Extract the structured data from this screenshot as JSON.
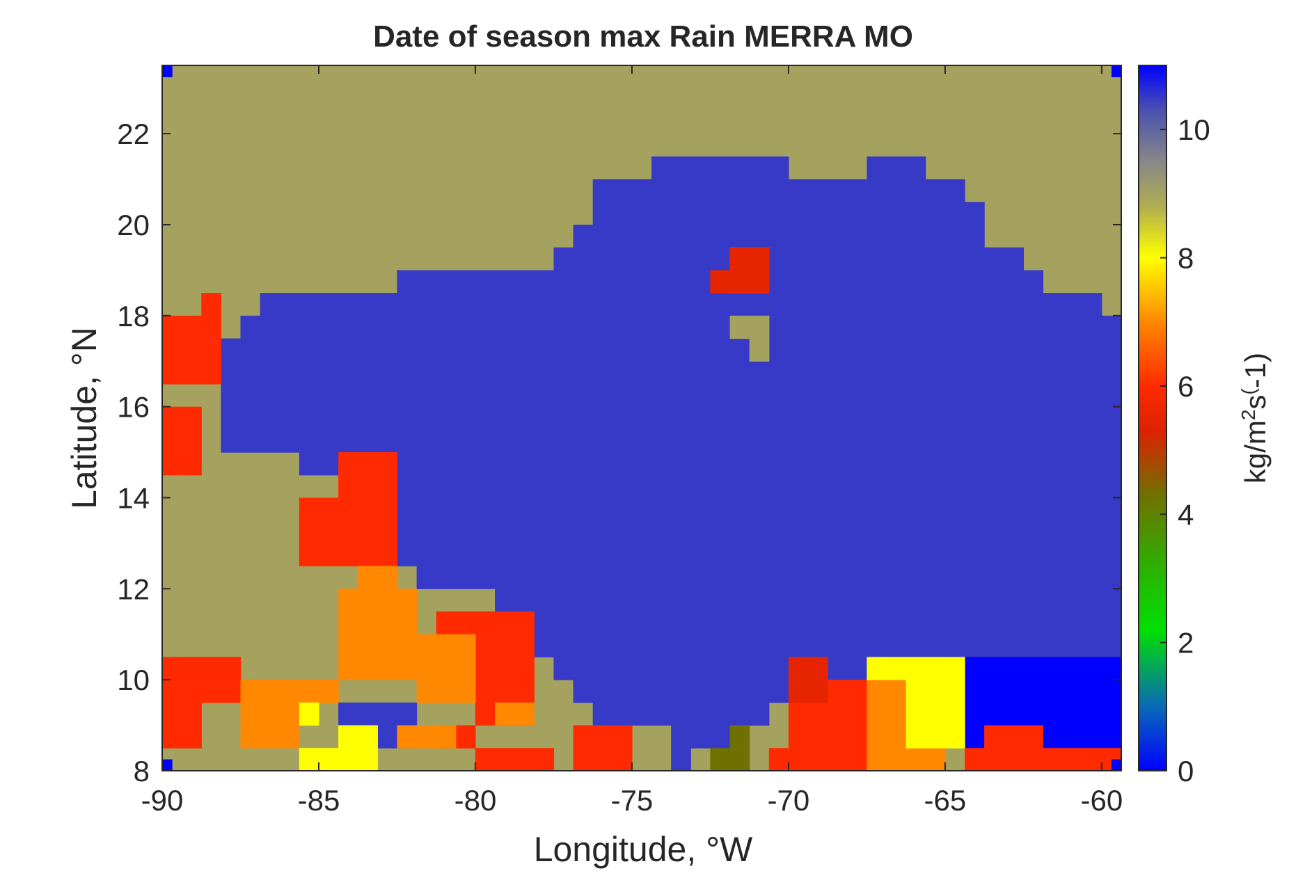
{
  "chart_data": {
    "type": "heatmap",
    "title": "Date of season max Rain MERRA MO",
    "xlabel": "Longitude, °W",
    "ylabel": "Latitude, °N",
    "xlim": [
      -90,
      -59.375
    ],
    "ylim": [
      8,
      23.5
    ],
    "grid_resolution": {
      "dlon": 0.625,
      "dlat": 0.5
    },
    "x_ticks": [
      "-90",
      "-85",
      "-80",
      "-75",
      "-70",
      "-65",
      "-60"
    ],
    "x_tick_values": [
      -90,
      -85,
      -80,
      -75,
      -70,
      -65,
      -60
    ],
    "y_ticks": [
      "8",
      "10",
      "12",
      "14",
      "16",
      "18",
      "20",
      "22"
    ],
    "y_tick_values": [
      8,
      10,
      12,
      14,
      16,
      18,
      20,
      22
    ],
    "colorbar": {
      "label": "kg/m^2s^(-1)",
      "label_parts": [
        "kg/m",
        "2",
        "s",
        "(",
        "-1)"
      ],
      "range": [
        0,
        11
      ],
      "ticks": [
        "0",
        "2",
        "4",
        "6",
        "8",
        "10"
      ],
      "tick_values": [
        0,
        2,
        4,
        6,
        8,
        10
      ],
      "colormap": [
        {
          "v": 0.0,
          "c": "#0000ff"
        },
        {
          "v": 1.0,
          "c": "#0a6ab8"
        },
        {
          "v": 2.2,
          "c": "#00e000"
        },
        {
          "v": 3.3,
          "c": "#33aa00"
        },
        {
          "v": 4.3,
          "c": "#707000"
        },
        {
          "v": 5.3,
          "c": "#dd2200"
        },
        {
          "v": 6.0,
          "c": "#ff2a00"
        },
        {
          "v": 7.0,
          "c": "#ff8800"
        },
        {
          "v": 8.0,
          "c": "#ffff00"
        },
        {
          "v": 8.8,
          "c": "#b0ad50"
        },
        {
          "v": 9.5,
          "c": "#888888"
        },
        {
          "v": 10.3,
          "c": "#4b51b0"
        },
        {
          "v": 11.0,
          "c": "#0000ff"
        }
      ]
    },
    "background_value": 9,
    "regions": [
      {
        "value": 10.5,
        "cells": [
          [
            -74.375,
            20.5,
            -70.0,
            21.5
          ],
          [
            -70.0,
            20.0,
            -67.5,
            21.0
          ],
          [
            -67.5,
            20.5,
            -65.625,
            21.5
          ],
          [
            -65.625,
            20.5,
            -64.375,
            21.0
          ],
          [
            -76.25,
            20.5,
            -74.375,
            21.0
          ],
          [
            -76.25,
            20.0,
            -63.75,
            20.5
          ],
          [
            -76.875,
            19.5,
            -63.75,
            20.0
          ],
          [
            -77.5,
            19.0,
            -62.5,
            19.5
          ],
          [
            -82.5,
            18.5,
            -61.875,
            19.0
          ],
          [
            -86.875,
            18.0,
            -60.0,
            18.5
          ],
          [
            -87.5,
            17.5,
            -59.375,
            18.0
          ],
          [
            -88.125,
            15.0,
            -59.375,
            17.5
          ],
          [
            -85.625,
            14.5,
            -59.375,
            15.0
          ],
          [
            -83.125,
            12.5,
            -59.375,
            14.5
          ],
          [
            -81.875,
            12.0,
            -59.375,
            12.5
          ],
          [
            -79.375,
            11.0,
            -59.375,
            12.0
          ],
          [
            -78.125,
            10.5,
            -59.375,
            11.0
          ],
          [
            -77.5,
            10.0,
            -64.375,
            10.5
          ],
          [
            -76.875,
            9.5,
            -70.0,
            10.0
          ],
          [
            -76.25,
            9.0,
            -70.625,
            9.5
          ],
          [
            -73.75,
            8.5,
            -71.875,
            9.0
          ],
          [
            -73.75,
            8.0,
            -73.125,
            8.5
          ],
          [
            -84.375,
            9.0,
            -81.875,
            9.5
          ],
          [
            -83.75,
            8.5,
            -81.875,
            9.0
          ]
        ]
      },
      {
        "value": 11.0,
        "cells": [
          [
            -64.375,
            8.5,
            -59.375,
            10.5
          ],
          [
            -65.0,
            9.5,
            -64.375,
            10.5
          ],
          [
            -60.0,
            8.0,
            -59.375,
            8.5
          ]
        ]
      },
      {
        "value": 9.0,
        "cells": [
          [
            -71.875,
            18.5,
            -70.625,
            19.5
          ],
          [
            -71.875,
            17.5,
            -70.625,
            18.0
          ],
          [
            -71.25,
            17.0,
            -70.625,
            17.5
          ],
          [
            -65.0,
            8.5,
            -64.375,
            9.0
          ]
        ]
      },
      {
        "value": 6.0,
        "cells": [
          [
            -90.0,
            16.5,
            -88.125,
            18.0
          ],
          [
            -88.75,
            18.0,
            -88.125,
            18.5
          ],
          [
            -90.0,
            14.5,
            -88.75,
            16.0
          ],
          [
            -85.625,
            12.5,
            -82.5,
            14.0
          ],
          [
            -84.375,
            14.0,
            -82.5,
            15.0
          ],
          [
            -90.0,
            9.5,
            -87.5,
            10.5
          ],
          [
            -87.5,
            9.0,
            -86.875,
            10.0
          ],
          [
            -90.0,
            8.5,
            -88.75,
            9.5
          ],
          [
            -81.25,
            10.0,
            -78.125,
            11.5
          ],
          [
            -80.0,
            9.0,
            -78.125,
            10.0
          ],
          [
            -81.25,
            8.5,
            -80.0,
            9.0
          ],
          [
            -80.0,
            8.0,
            -77.5,
            8.5
          ],
          [
            -76.875,
            8.0,
            -75.0,
            9.0
          ],
          [
            -72.5,
            8.0,
            -72.5,
            8.5
          ],
          [
            -71.25,
            18.5,
            -70.625,
            19.5
          ],
          [
            -68.75,
            8.0,
            -67.5,
            10.0
          ],
          [
            -70.0,
            8.0,
            -68.75,
            9.5
          ],
          [
            -70.625,
            8.0,
            -70.0,
            8.5
          ],
          [
            -64.375,
            8.0,
            -59.375,
            8.5
          ],
          [
            -63.75,
            8.5,
            -61.875,
            9.0
          ]
        ]
      },
      {
        "value": 5.5,
        "cells": [
          [
            -71.875,
            18.5,
            -70.625,
            19.5
          ],
          [
            -70.0,
            9.5,
            -68.75,
            10.5
          ],
          [
            -72.5,
            18.5,
            -71.875,
            19.0
          ]
        ]
      },
      {
        "value": 7.0,
        "cells": [
          [
            -84.375,
            10.0,
            -81.875,
            12.0
          ],
          [
            -83.75,
            12.0,
            -82.5,
            12.5
          ],
          [
            -81.875,
            9.5,
            -80.0,
            11.0
          ],
          [
            -87.5,
            8.5,
            -85.625,
            10.0
          ],
          [
            -85.625,
            9.5,
            -84.375,
            10.0
          ],
          [
            -82.5,
            8.5,
            -80.625,
            9.0
          ],
          [
            -79.375,
            9.0,
            -78.125,
            9.5
          ],
          [
            -67.5,
            8.0,
            -65.0,
            9.5
          ],
          [
            -67.5,
            9.5,
            -66.25,
            10.0
          ]
        ]
      },
      {
        "value": 8.0,
        "cells": [
          [
            -66.25,
            8.5,
            -64.375,
            10.0
          ],
          [
            -67.5,
            10.0,
            -64.375,
            10.5
          ],
          [
            -85.625,
            9.0,
            -85.0,
            9.5
          ],
          [
            -85.625,
            8.0,
            -83.125,
            8.5
          ],
          [
            -84.375,
            8.5,
            -83.125,
            9.0
          ]
        ]
      },
      {
        "value": 4.3,
        "cells": [
          [
            -72.5,
            8.0,
            -71.25,
            8.5
          ],
          [
            -71.875,
            8.5,
            -71.25,
            9.0
          ]
        ]
      },
      {
        "value": 11.0,
        "cells": [
          [
            -90.0,
            8.0,
            -89.6875,
            8.25
          ],
          [
            -59.6875,
            8.0,
            -59.375,
            8.25
          ],
          [
            -90.0,
            23.25,
            -89.6875,
            23.5
          ],
          [
            -59.6875,
            23.25,
            -59.375,
            23.5
          ]
        ]
      }
    ],
    "grid": false
  }
}
